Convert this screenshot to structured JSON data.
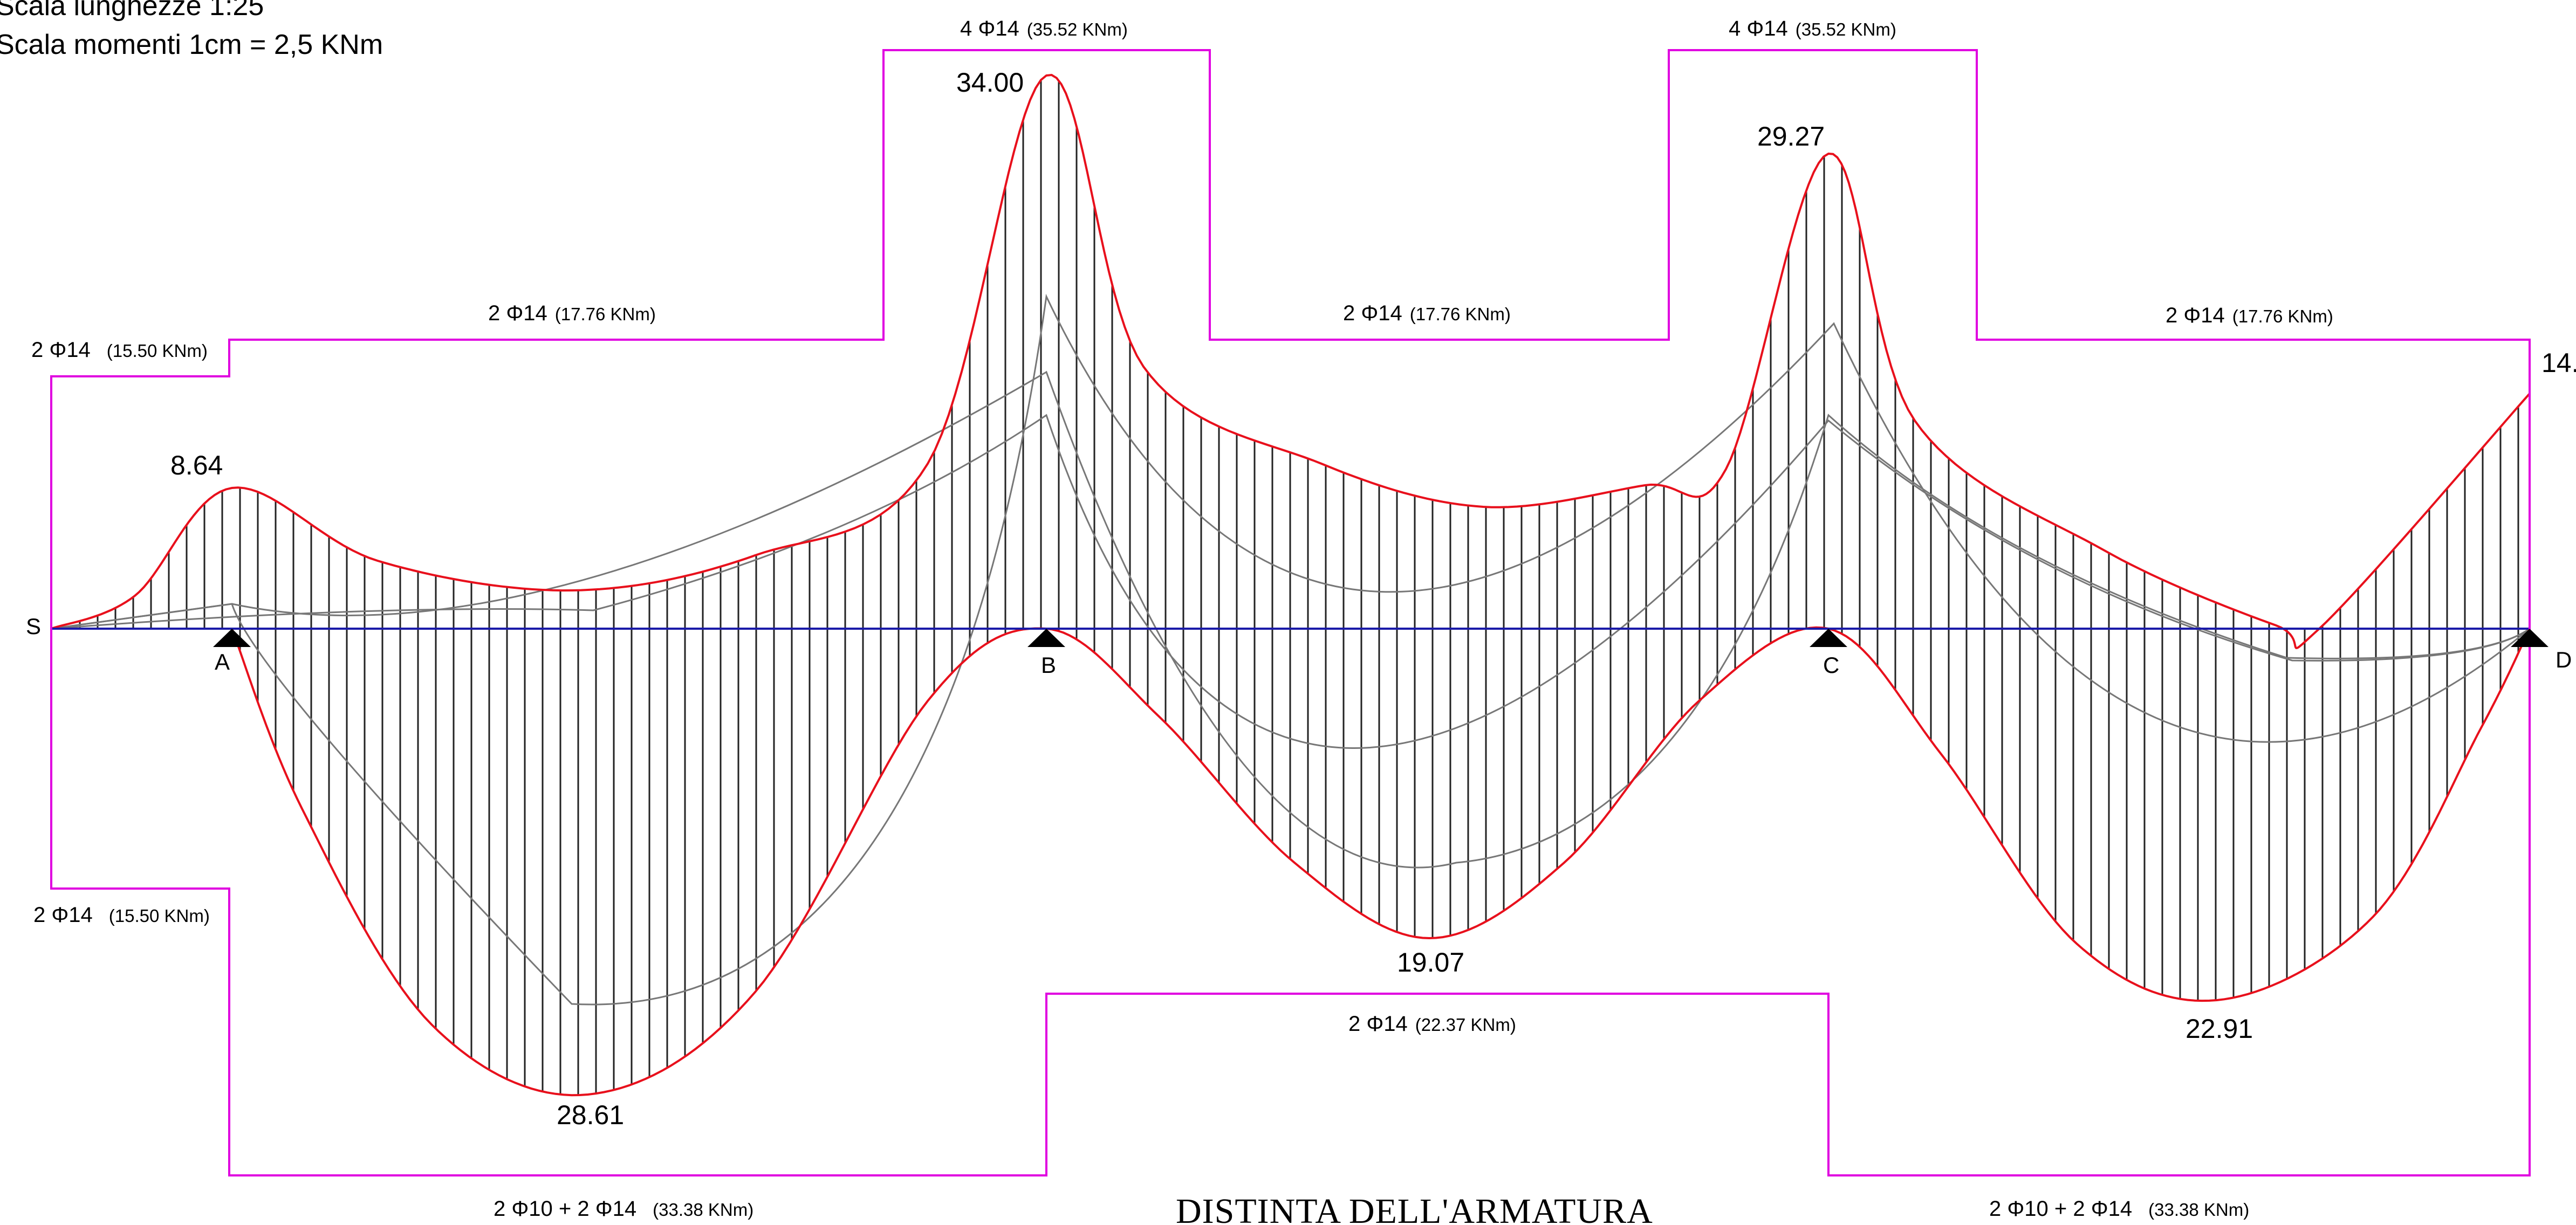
{
  "scale": {
    "lengths": "Scala lunghezze 1:25",
    "moments": "Scala momenti  1cm = 2,5 KNm"
  },
  "title": "DISTINTA DELL'ARMATURA",
  "supports": [
    "S",
    "A",
    "B",
    "C",
    "D"
  ],
  "peaks": {
    "A": "8.64",
    "B": "34.00",
    "C": "29.27",
    "D": "14.",
    "span_AB": "28.61",
    "span_BC": "19.07",
    "span_CD": "22.91"
  },
  "rebar_top": [
    {
      "bars": "2 Φ14",
      "moment": "(15.50 KNm)"
    },
    {
      "bars": "2 Φ14",
      "moment": "(17.76 KNm)"
    },
    {
      "bars": "4 Φ14",
      "moment": "(35.52 KNm)"
    },
    {
      "bars": "2 Φ14",
      "moment": "(17.76 KNm)"
    },
    {
      "bars": "4 Φ14",
      "moment": "(35.52 KNm)"
    },
    {
      "bars": "2 Φ14",
      "moment": "(17.76 KNm)"
    }
  ],
  "rebar_bottom": [
    {
      "bars": "2 Φ14",
      "moment": "(15.50 KNm)"
    },
    {
      "bars": "2 Φ10 + 2 Φ14",
      "moment": "(33.38 KNm)"
    },
    {
      "bars": "2 Φ14",
      "moment": "(22.37 KNm)"
    },
    {
      "bars": "2 Φ10 + 2 Φ14",
      "moment": "(33.38 KNm)"
    }
  ],
  "colors": {
    "envelope": "#e8101c",
    "rebar": "#e000e0",
    "axis": "#1a1aa8",
    "hatch": "#222222",
    "combo": "#777777"
  }
}
